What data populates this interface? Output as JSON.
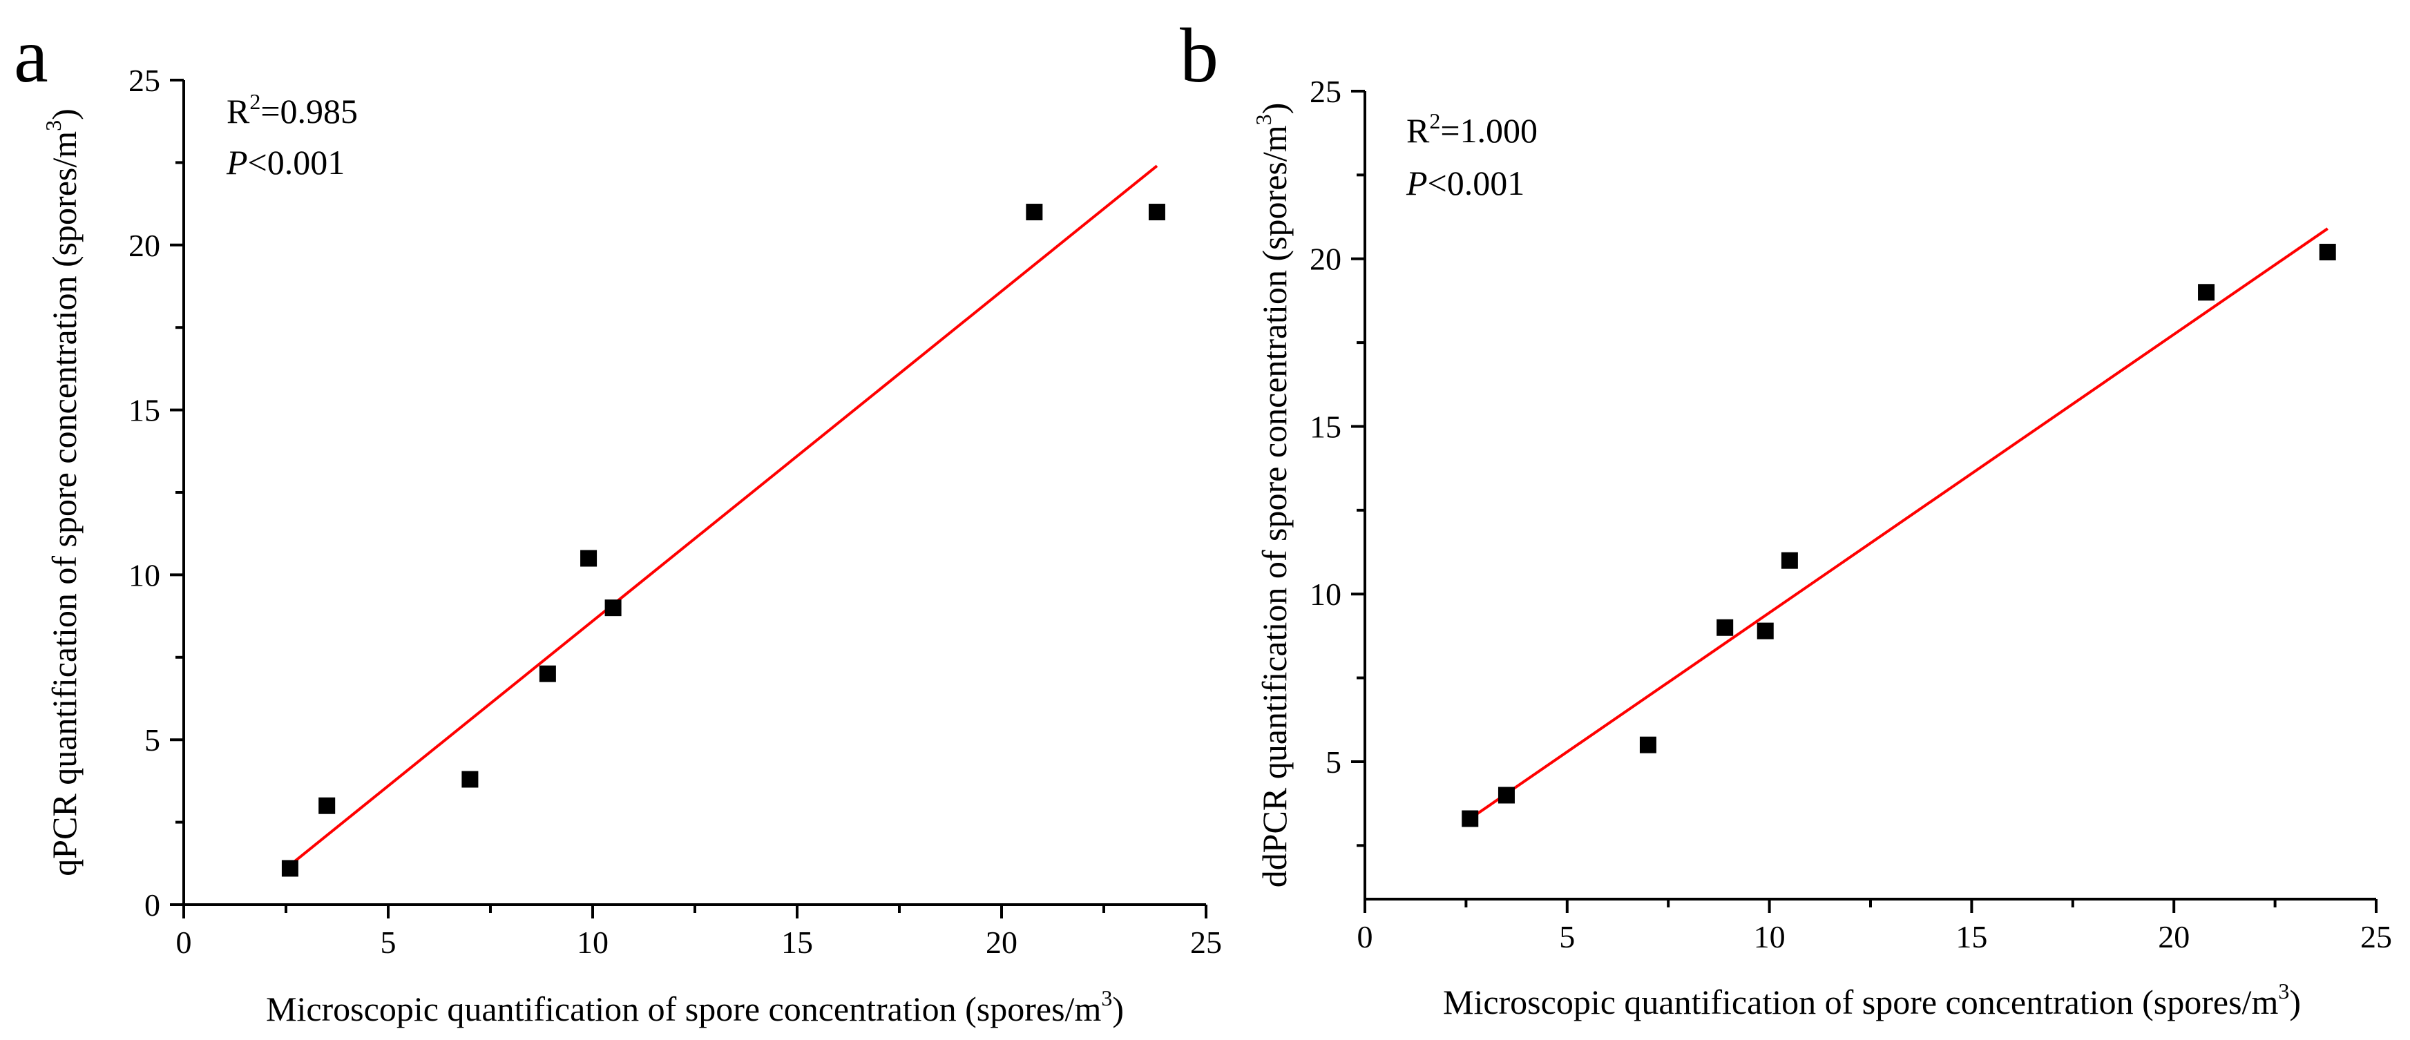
{
  "chart_data": [
    {
      "type": "scatter",
      "panel_label": "a",
      "xlabel": "Microscopic quantification of spore concentration (spores/m",
      "xlabel_sup": "3",
      "xlabel_end": ")",
      "ylabel": "qPCR quantification of spore concentration (spores/m",
      "ylabel_sup": "3",
      "ylabel_end": ")",
      "xlim": [
        0,
        25
      ],
      "ylim": [
        0,
        25
      ],
      "xticks": [
        "0",
        "5",
        "10",
        "15",
        "20",
        "25"
      ],
      "yticks": [
        "0",
        "5",
        "10",
        "15",
        "20",
        "25"
      ],
      "r2_label": "R",
      "r2_sup": "2",
      "r2_value": "=0.985",
      "p_italic": "P",
      "p_value": "<0.001",
      "points": [
        {
          "x": 2.6,
          "y": 1.1
        },
        {
          "x": 3.5,
          "y": 3.0
        },
        {
          "x": 7.0,
          "y": 3.8
        },
        {
          "x": 8.9,
          "y": 7.0
        },
        {
          "x": 9.9,
          "y": 10.5
        },
        {
          "x": 10.5,
          "y": 9.0
        },
        {
          "x": 20.8,
          "y": 21.0
        },
        {
          "x": 23.8,
          "y": 21.0
        }
      ],
      "fit_line": {
        "x": [
          2.6,
          23.8
        ],
        "y": [
          1.2,
          22.4
        ]
      },
      "marker_color": "#000000",
      "line_color": "#ff0000"
    },
    {
      "type": "scatter",
      "panel_label": "b",
      "xlabel": "Microscopic quantification of spore concentration (spores/m",
      "xlabel_sup": "3",
      "xlabel_end": ")",
      "ylabel": "ddPCR quantification of spore concentration (spores/m",
      "ylabel_sup": "3",
      "ylabel_end": ")",
      "xlim": [
        0,
        25
      ],
      "ylim": [
        0.9,
        25
      ],
      "xticks": [
        "0",
        "5",
        "10",
        "15",
        "20",
        "25"
      ],
      "yticks": [
        "5",
        "10",
        "15",
        "20",
        "25"
      ],
      "r2_label": "R",
      "r2_sup": "2",
      "r2_value": "=1.000",
      "p_italic": "P",
      "p_value": "<0.001",
      "points": [
        {
          "x": 2.6,
          "y": 3.3
        },
        {
          "x": 3.5,
          "y": 4.0
        },
        {
          "x": 7.0,
          "y": 5.5
        },
        {
          "x": 8.9,
          "y": 9.0
        },
        {
          "x": 9.9,
          "y": 8.9
        },
        {
          "x": 10.5,
          "y": 11.0
        },
        {
          "x": 20.8,
          "y": 19.0
        },
        {
          "x": 23.8,
          "y": 20.2
        }
      ],
      "fit_line": {
        "x": [
          2.6,
          23.8
        ],
        "y": [
          3.3,
          20.9
        ]
      },
      "marker_color": "#000000",
      "line_color": "#ff0000"
    }
  ]
}
